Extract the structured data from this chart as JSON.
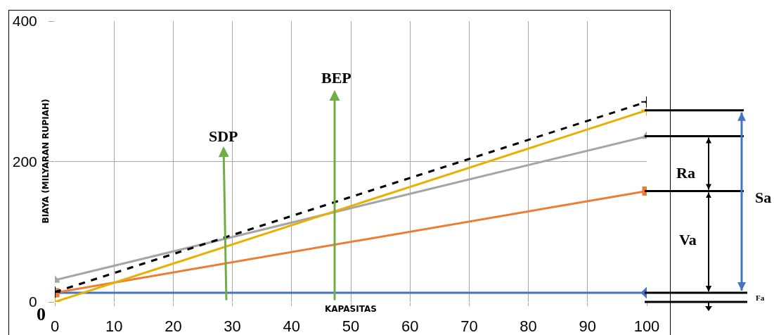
{
  "chart_data": {
    "type": "line",
    "xlabel": "KAPASITAS",
    "ylabel": "BIAYA (MILYARAN RUPIAH)",
    "x": [
      0,
      100
    ],
    "series": [
      {
        "color": "#4472c4",
        "values": [
          13,
          13
        ],
        "marker": "diamond"
      },
      {
        "color": "#ed7d31",
        "values": [
          13,
          158
        ],
        "marker": "square"
      },
      {
        "color": "#a5a5a5",
        "values": [
          31,
          236
        ],
        "marker": "triangle"
      },
      {
        "color": "#e8b000",
        "values": [
          0,
          273
        ],
        "marker": "cross"
      },
      {
        "color": "#000000",
        "values": [
          14,
          285
        ],
        "marker": "cross",
        "line_style": "dashed"
      }
    ],
    "xlim": [
      0,
      100
    ],
    "xticks": [
      0,
      10,
      20,
      30,
      40,
      50,
      60,
      70,
      80,
      90,
      100
    ],
    "ylim": [
      0,
      400
    ],
    "yticks": [
      0,
      200,
      400
    ],
    "grid": true,
    "annotations": [
      "SDP",
      "BEP",
      "Ra",
      "Va",
      {
        "text": "Sa",
        "x": 100,
        "y": 158
      },
      {
        "text": "Fa",
        "x": 100,
        "y": 13
      },
      "0"
    ]
  }
}
